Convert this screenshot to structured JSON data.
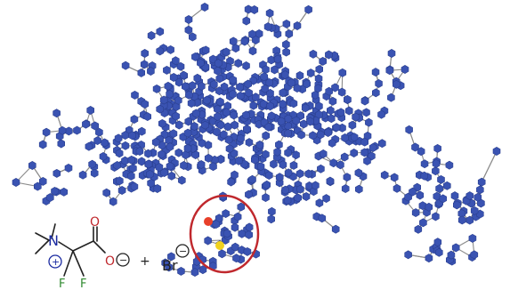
{
  "colors": {
    "node": "#3a53b2",
    "edge": "#8a8a8a",
    "highlight_circle": "#c0282d",
    "marker_red": "#e8402a",
    "marker_yellow": "#f0d21e",
    "bond": "#222222",
    "oxygen": "#c0282d",
    "fluorine": "#2f8a2f",
    "nitrogen": "#1a2aa0"
  },
  "molecule": {
    "nitrogen": "N",
    "plus": "+",
    "oxygen_top": "O",
    "oxygen_bottom": "O",
    "minus": "−",
    "fluorine_left": "F",
    "fluorine_right": "F",
    "plus_sign": "+",
    "bromide": "Br",
    "bromide_charge": "−"
  }
}
